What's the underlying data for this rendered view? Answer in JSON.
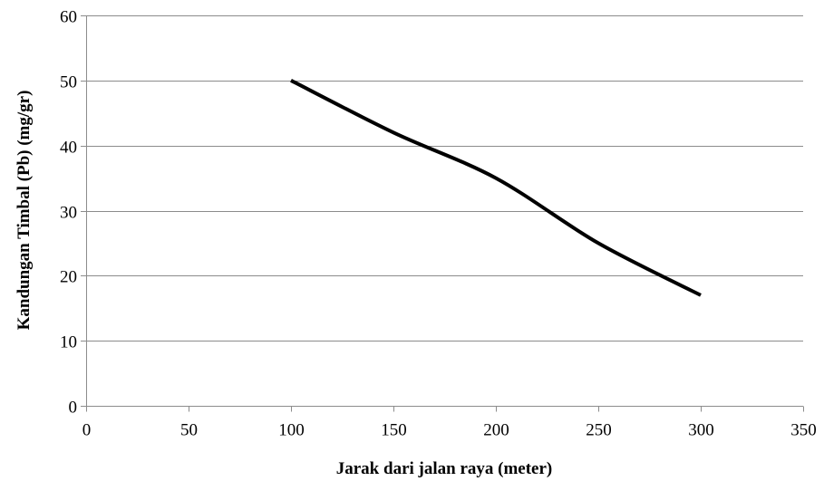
{
  "chart_data": {
    "type": "line",
    "title": "",
    "xlabel": "Jarak dari jalan raya (meter)",
    "ylabel": "Kandungan Timbal  (Pb) (mg/gr)",
    "xlim": [
      0,
      350
    ],
    "ylim": [
      0,
      60
    ],
    "x_ticks": [
      0,
      50,
      100,
      150,
      200,
      250,
      300,
      350
    ],
    "y_ticks": [
      0,
      10,
      20,
      30,
      40,
      50,
      60
    ],
    "grid": "horizontal",
    "legend": "none",
    "line_color": "#000000",
    "series": [
      {
        "x": [
          100,
          150,
          200,
          250,
          300
        ],
        "y": [
          50,
          42,
          35,
          25,
          17
        ]
      }
    ]
  }
}
